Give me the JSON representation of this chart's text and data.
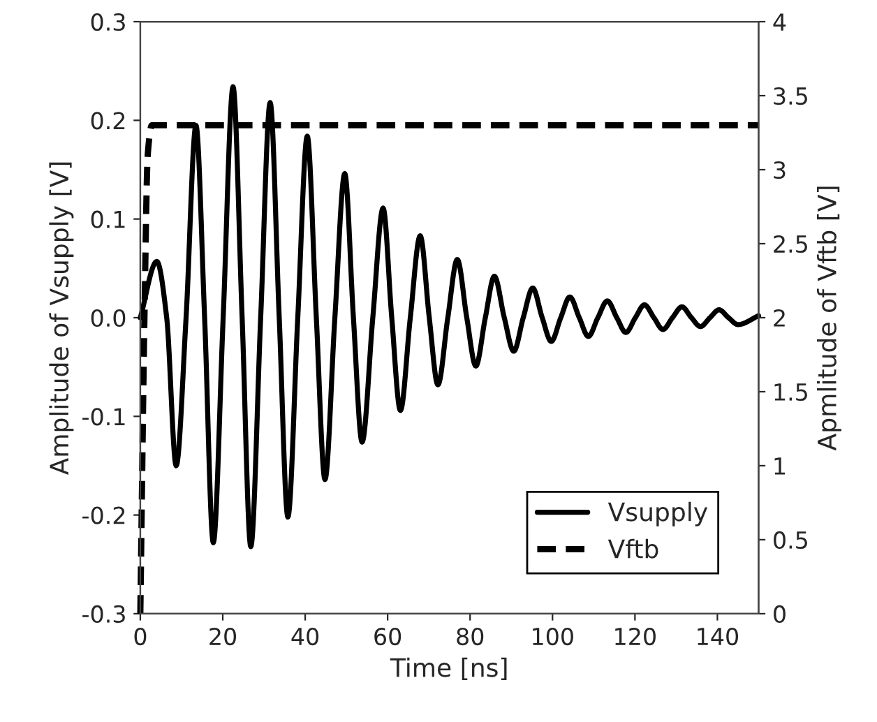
{
  "chart_data": {
    "type": "line",
    "xlabel": "Time [ns]",
    "ylabel": "Amplitude of Vsupply [V]",
    "y2label": "Apmlitude of Vftb [V]",
    "xlim": [
      0,
      150
    ],
    "xticks": [
      0,
      20,
      40,
      60,
      80,
      100,
      120,
      140
    ],
    "ylim": [
      -0.3,
      0.3
    ],
    "yticks": [
      {
        "value": -0.3,
        "label": "-0.3"
      },
      {
        "value": -0.2,
        "label": "-0.2"
      },
      {
        "value": -0.1,
        "label": "-0.1"
      },
      {
        "value": 0,
        "label": "0.0"
      },
      {
        "value": 0.1,
        "label": "0.1"
      },
      {
        "value": 0.2,
        "label": "0.2"
      },
      {
        "value": 0.3,
        "label": "0.3"
      }
    ],
    "y2lim": [
      0,
      4
    ],
    "y2ticks": [
      0,
      0.5,
      1,
      1.5,
      2,
      2.5,
      3,
      3.5,
      4
    ],
    "grid": false,
    "legend": "bottom right",
    "series": [
      {
        "name": "Vsupply",
        "color": "#000000",
        "line_style": "solid",
        "x": [
          0,
          4.0,
          6.4,
          8.7,
          11.1,
          13.5,
          15.6,
          17.7,
          20.1,
          22.5,
          24.7,
          26.8,
          29.2,
          31.5,
          33.7,
          35.8,
          38.2,
          40.5,
          42.7,
          44.8,
          47.2,
          49.6,
          51.7,
          53.8,
          56.4,
          58.9,
          61.0,
          63.1,
          65.5,
          67.9,
          70.1,
          72.2,
          74.6,
          76.9,
          79.2,
          81.4,
          83.7,
          85.9,
          88.3,
          90.6,
          92.9,
          95.2,
          97.5,
          99.7,
          102.0,
          104.2,
          106.5,
          108.7,
          111.0,
          113.3,
          115.6,
          117.8,
          120.1,
          122.3,
          124.6,
          126.8,
          129.1,
          131.4,
          133.7,
          135.9,
          138.2,
          140.4,
          142.7,
          145.0,
          150.0
        ],
        "values": [
          0,
          0.057,
          0,
          -0.15,
          0,
          0.195,
          0,
          -0.228,
          0,
          0.234,
          0,
          -0.232,
          0,
          0.218,
          0,
          -0.202,
          0,
          0.184,
          0,
          -0.164,
          0,
          0.146,
          0,
          -0.126,
          0,
          0.111,
          0,
          -0.094,
          0,
          0.083,
          0,
          -0.068,
          0,
          0.059,
          0,
          -0.049,
          0,
          0.042,
          0,
          -0.034,
          0,
          0.03,
          0,
          -0.024,
          0,
          0.021,
          0,
          -0.019,
          0,
          0.017,
          0,
          -0.015,
          0,
          0.013,
          0,
          -0.012,
          0,
          0.011,
          0,
          -0.009,
          0,
          0.008,
          0,
          -0.007,
          0.002
        ]
      },
      {
        "name": "Vftb",
        "color": "#000000",
        "line_style": "dashed",
        "axis": "y2",
        "x": [
          0,
          1.0,
          1.8,
          2.8,
          150
        ],
        "values": [
          0,
          2.0,
          3.1,
          3.3,
          3.3
        ]
      }
    ]
  }
}
